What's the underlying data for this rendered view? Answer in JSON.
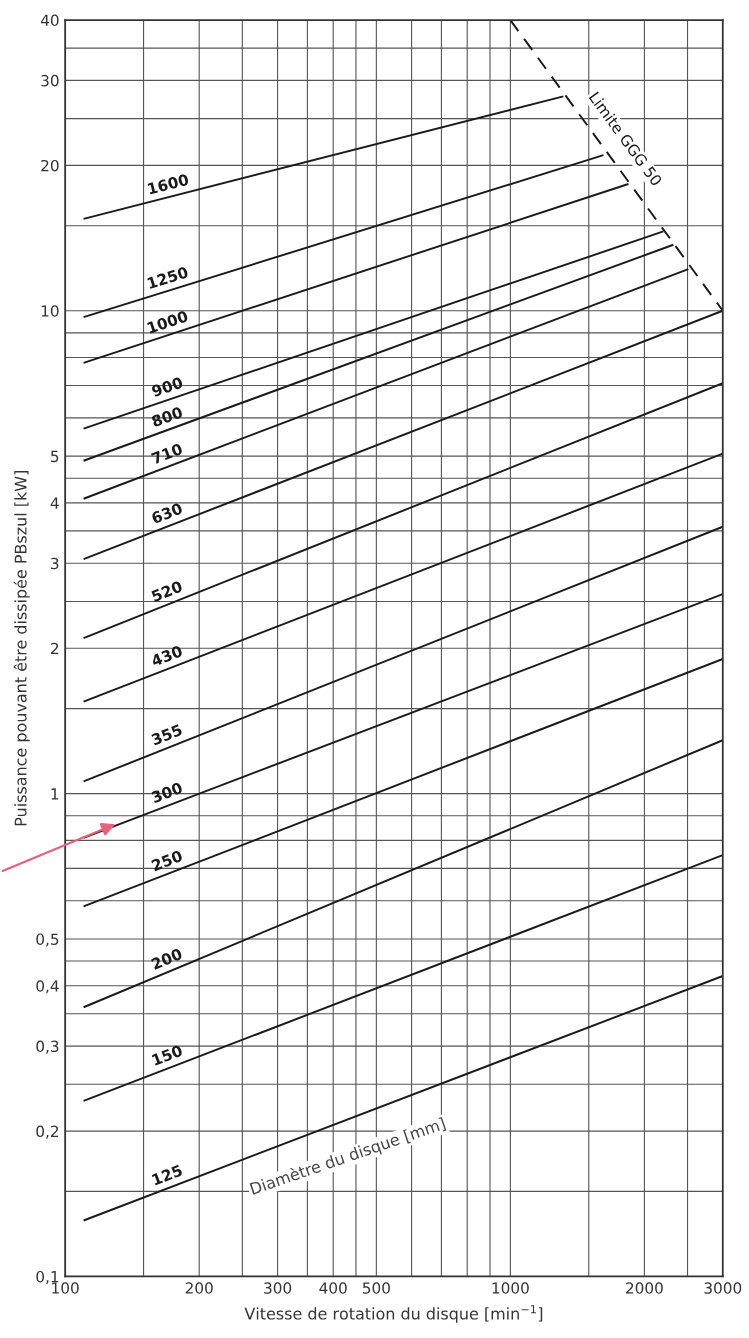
{
  "chart_data": {
    "type": "line",
    "xlabel": "Vitesse de rotation du disque [min$^{−1}$]",
    "ylabel": "Puissance pouvant être dissipée PBszul [kW]",
    "annotations": [
      "Diamètre du disque [mm]"
    ],
    "log": "xy",
    "grid": true,
    "line_style": "solid",
    "xlim": [
      100,
      3000
    ],
    "xticks": [
      100,
      {
        "value": 150,
        "label": null
      },
      200,
      {
        "value": 250,
        "label": null
      },
      300,
      {
        "value": 350,
        "label": null
      },
      400,
      {
        "value": 450,
        "label": null
      },
      500,
      {
        "value": 600,
        "label": null
      },
      {
        "value": 700,
        "label": null
      },
      {
        "value": 800,
        "label": null
      },
      {
        "value": 900,
        "label": null
      },
      1000,
      {
        "value": 1500,
        "label": null
      },
      2000,
      {
        "value": 2500,
        "label": null
      },
      3000
    ],
    "ylim": [
      0.1,
      40
    ],
    "yticks": [
      {
        "value": 0.1,
        "label": "0,1"
      },
      {
        "value": 0.15,
        "label": null
      },
      {
        "value": 0.2,
        "label": "0,2"
      },
      {
        "value": 0.25,
        "label": null
      },
      {
        "value": 0.3,
        "label": "0,3"
      },
      {
        "value": 0.35,
        "label": null
      },
      {
        "value": 0.4,
        "label": "0,4"
      },
      {
        "value": 0.45,
        "label": null
      },
      {
        "value": 0.5,
        "label": "0,5"
      },
      {
        "value": 0.6,
        "label": null
      },
      {
        "value": 0.7,
        "label": null
      },
      {
        "value": 0.8,
        "label": null
      },
      {
        "value": 0.9,
        "label": null
      },
      1,
      {
        "value": 1.5,
        "label": null
      },
      2,
      {
        "value": 2.5,
        "label": null
      },
      3,
      {
        "value": 3.5,
        "label": null
      },
      4,
      {
        "value": 4.5,
        "label": null
      },
      5,
      {
        "value": 6,
        "label": null
      },
      {
        "value": 7,
        "label": null
      },
      {
        "value": 8,
        "label": null
      },
      {
        "value": 9,
        "label": null
      },
      10,
      {
        "value": 15,
        "label": null
      },
      20,
      {
        "value": 25,
        "label": null
      },
      30,
      {
        "value": 35,
        "label": null
      },
      40
    ],
    "series": [
      {
        "name": "1600",
        "color": "#1a1a1a",
        "x": [
          110,
          1315
        ],
        "values": [
          15.5,
          27.8
        ]
      },
      {
        "name": "1250",
        "color": "#1a1a1a",
        "x": [
          110,
          1618
        ],
        "values": [
          9.7,
          21.0
        ]
      },
      {
        "name": "1000",
        "color": "#1a1a1a",
        "x": [
          110,
          1841
        ],
        "values": [
          7.8,
          18.3
        ]
      },
      {
        "name": "900",
        "color": "#1a1a1a",
        "x": [
          110,
          2206
        ],
        "values": [
          5.7,
          14.6
        ]
      },
      {
        "name": "800",
        "color": "#1a1a1a",
        "x": [
          110,
          2323
        ],
        "values": [
          4.89,
          13.7
        ]
      },
      {
        "name": "710",
        "color": "#1a1a1a",
        "x": [
          110,
          2510
        ],
        "values": [
          4.08,
          12.2
        ]
      },
      {
        "name": "630",
        "color": "#1a1a1a",
        "x": [
          110,
          3000
        ],
        "values": [
          3.06,
          10
        ]
      },
      {
        "name": "520",
        "color": "#1a1a1a",
        "x": [
          110,
          3000
        ],
        "values": [
          2.1,
          7.08
        ]
      },
      {
        "name": "430",
        "color": "#1a1a1a",
        "x": [
          110,
          3000
        ],
        "values": [
          1.55,
          5.06
        ]
      },
      {
        "name": "355",
        "color": "#1a1a1a",
        "x": [
          110,
          3000
        ],
        "values": [
          1.06,
          3.57
        ]
      },
      {
        "name": "300",
        "color": "#1a1a1a",
        "x": [
          110,
          3000
        ],
        "values": [
          0.81,
          2.59
        ]
      },
      {
        "name": "250",
        "color": "#1a1a1a",
        "x": [
          110,
          3000
        ],
        "values": [
          0.584,
          1.9
        ]
      },
      {
        "name": "200",
        "color": "#1a1a1a",
        "x": [
          110,
          3000
        ],
        "values": [
          0.361,
          1.29
        ]
      },
      {
        "name": "150",
        "color": "#1a1a1a",
        "x": [
          110,
          3000
        ],
        "values": [
          0.231,
          0.746
        ]
      },
      {
        "name": "125",
        "color": "#1a1a1a",
        "x": [
          110,
          3000
        ],
        "values": [
          0.1306,
          0.419
        ]
      },
      {
        "name": "Limite GGG 50",
        "color": "#1a1a1a",
        "line_style": "dashed",
        "x": [
          1000,
          3000
        ],
        "values": [
          40,
          10
        ]
      }
    ]
  }
}
